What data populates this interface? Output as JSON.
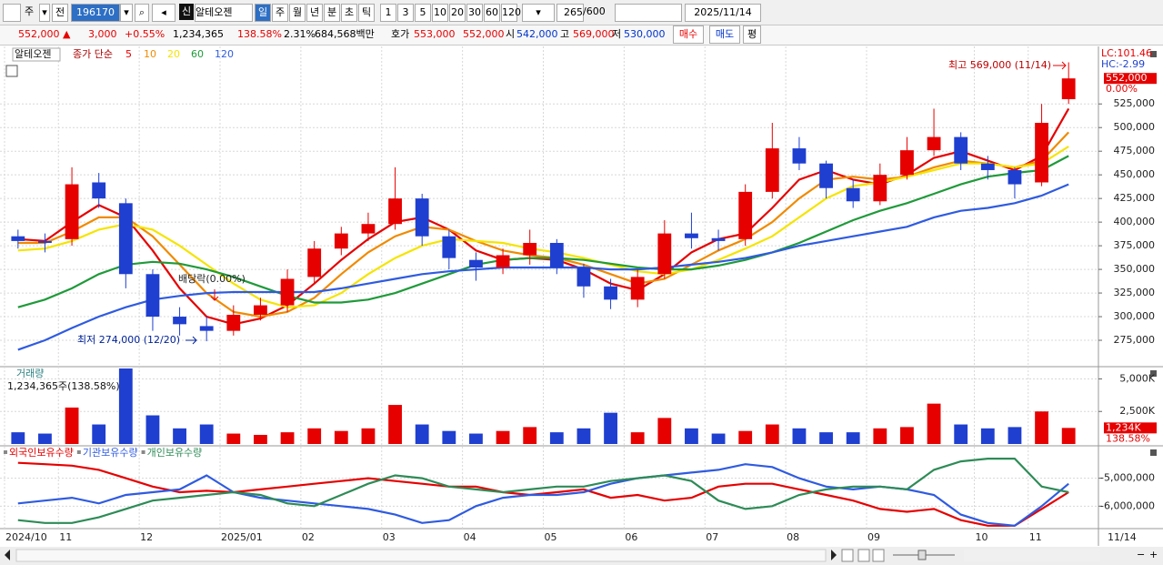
{
  "toolbar": {
    "market": "주",
    "view": "전",
    "code": "196170",
    "badge": "신",
    "name": "알테오젠",
    "periods": [
      "일",
      "주",
      "월",
      "년",
      "분",
      "초",
      "틱"
    ],
    "intervals": [
      "1",
      "3",
      "5",
      "10",
      "20",
      "30",
      "60",
      "120"
    ],
    "count": "265",
    "max": "/600",
    "date": "2025/11/14"
  },
  "quote": {
    "price": "552,000 ▲",
    "change": "3,000",
    "rate": "+0.55%",
    "volume": "1,234,365",
    "volume_ratio": "138.58%",
    "turnover": "2.31%",
    "amount": "684,568백만",
    "bid_label": "호가",
    "ask": "553,000",
    "bid": "552,000",
    "open_label": "시",
    "open": "542,000",
    "high_label": "고",
    "high": "569,000",
    "low_label": "저",
    "low": "530,000",
    "buy": "매수",
    "sell": "매도",
    "avg": "평"
  },
  "x_end_label": "11/14",
  "chart_data": [
    {
      "type": "candlestick",
      "title": "알테오젠",
      "ma_label": "종가 단순",
      "categories": [
        "2024/10",
        null,
        "11",
        null,
        null,
        "12",
        null,
        null,
        "2025/01",
        null,
        null,
        "02",
        null,
        null,
        "03",
        null,
        null,
        "04",
        null,
        null,
        "05",
        null,
        null,
        "06",
        null,
        null,
        "07",
        null,
        null,
        "08",
        null,
        null,
        "09",
        null,
        null,
        null,
        "10",
        null,
        "11",
        null
      ],
      "open": [
        385000,
        380000,
        382000,
        442000,
        420000,
        345000,
        300000,
        290000,
        285000,
        302000,
        312000,
        342000,
        372000,
        388000,
        398000,
        425000,
        385000,
        360000,
        352000,
        365000,
        378000,
        352000,
        332000,
        318000,
        345000,
        388000,
        383000,
        382000,
        432000,
        478000,
        462000,
        436000,
        422000,
        450000,
        476000,
        490000,
        462000,
        455000,
        442000,
        530000
      ],
      "high": [
        392000,
        388000,
        458000,
        452000,
        425000,
        350000,
        310000,
        300000,
        312000,
        320000,
        350000,
        380000,
        395000,
        410000,
        458000,
        430000,
        392000,
        368000,
        372000,
        392000,
        382000,
        356000,
        340000,
        350000,
        402000,
        410000,
        392000,
        440000,
        505000,
        490000,
        465000,
        445000,
        462000,
        490000,
        520000,
        495000,
        470000,
        458000,
        525000,
        569000
      ],
      "low": [
        372000,
        368000,
        375000,
        415000,
        330000,
        285000,
        280000,
        274000,
        280000,
        296000,
        305000,
        335000,
        365000,
        380000,
        392000,
        375000,
        350000,
        338000,
        345000,
        355000,
        345000,
        320000,
        308000,
        310000,
        340000,
        372000,
        370000,
        375000,
        425000,
        455000,
        425000,
        415000,
        418000,
        445000,
        470000,
        455000,
        445000,
        425000,
        438000,
        525000
      ],
      "close": [
        380000,
        378000,
        440000,
        425000,
        345000,
        300000,
        292000,
        285000,
        302000,
        312000,
        340000,
        372000,
        388000,
        398000,
        425000,
        385000,
        362000,
        352000,
        365000,
        378000,
        352000,
        332000,
        318000,
        342000,
        388000,
        383000,
        380000,
        432000,
        478000,
        462000,
        436000,
        422000,
        450000,
        476000,
        490000,
        462000,
        455000,
        440000,
        505000,
        552000
      ],
      "up_color": "#e60000",
      "down_color": "#1f3fd0",
      "series": [
        {
          "name": "5",
          "color": "#e60000",
          "values": [
            382000,
            380000,
            400000,
            418000,
            405000,
            370000,
            330000,
            300000,
            292000,
            298000,
            312000,
            335000,
            360000,
            382000,
            400000,
            405000,
            392000,
            370000,
            360000,
            362000,
            360000,
            350000,
            335000,
            328000,
            345000,
            368000,
            382000,
            388000,
            415000,
            445000,
            455000,
            445000,
            440000,
            450000,
            468000,
            475000,
            465000,
            455000,
            470000,
            520000
          ]
        },
        {
          "name": "10",
          "color": "#f08a00",
          "values": [
            378000,
            378000,
            390000,
            405000,
            405000,
            385000,
            355000,
            325000,
            305000,
            300000,
            305000,
            320000,
            345000,
            368000,
            385000,
            395000,
            392000,
            380000,
            370000,
            365000,
            362000,
            355000,
            345000,
            335000,
            340000,
            355000,
            370000,
            382000,
            400000,
            425000,
            445000,
            448000,
            445000,
            448000,
            458000,
            465000,
            462000,
            458000,
            465000,
            495000
          ]
        },
        {
          "name": "20",
          "color": "#f5e400",
          "values": [
            370000,
            372000,
            380000,
            392000,
            398000,
            392000,
            375000,
            355000,
            335000,
            318000,
            310000,
            312000,
            325000,
            345000,
            362000,
            375000,
            382000,
            380000,
            378000,
            372000,
            368000,
            362000,
            355000,
            348000,
            345000,
            350000,
            360000,
            372000,
            385000,
            405000,
            425000,
            438000,
            442000,
            448000,
            455000,
            462000,
            462000,
            458000,
            462000,
            480000
          ]
        },
        {
          "name": "60",
          "color": "#1f9a3a",
          "values": [
            310000,
            318000,
            330000,
            345000,
            355000,
            358000,
            356000,
            350000,
            342000,
            332000,
            322000,
            315000,
            315000,
            318000,
            325000,
            335000,
            345000,
            355000,
            360000,
            362000,
            362000,
            360000,
            356000,
            352000,
            350000,
            350000,
            354000,
            360000,
            368000,
            378000,
            390000,
            402000,
            412000,
            420000,
            430000,
            440000,
            448000,
            452000,
            455000,
            470000
          ]
        },
        {
          "name": "120",
          "color": "#2f5be0",
          "values": [
            265000,
            275000,
            288000,
            300000,
            310000,
            318000,
            322000,
            325000,
            326000,
            326000,
            326000,
            326000,
            330000,
            335000,
            340000,
            345000,
            348000,
            350000,
            352000,
            352000,
            352000,
            352000,
            350000,
            350000,
            352000,
            355000,
            358000,
            362000,
            368000,
            375000,
            380000,
            385000,
            390000,
            395000,
            405000,
            412000,
            415000,
            420000,
            428000,
            440000
          ]
        }
      ],
      "ylim": [
        250000,
        582000
      ],
      "yticks": [
        {
          "value": 275000,
          "label": "275,000"
        },
        {
          "value": 300000,
          "label": "300,000"
        },
        {
          "value": 325000,
          "label": "325,000"
        },
        {
          "value": 350000,
          "label": "350,000"
        },
        {
          "value": 375000,
          "label": "375,000"
        },
        {
          "value": 400000,
          "label": "400,000"
        },
        {
          "value": 425000,
          "label": "425,000"
        },
        {
          "value": 450000,
          "label": "450,000"
        },
        {
          "value": 475000,
          "label": "475,000"
        },
        {
          "value": 500000,
          "label": "500,000"
        },
        {
          "value": 525000,
          "label": "525,000"
        }
      ],
      "grid": true,
      "annotations": {
        "high": "최고 569,000 (11/14)",
        "low": "최저 274,000 (12/20)",
        "dividend": "배당락(0.00%)",
        "lc": "LC:101.46",
        "hc": "HC:-2.99",
        "last": "552,000",
        "last_rate": "0.00%"
      }
    },
    {
      "type": "bar",
      "title": "거래량",
      "subtitle": "1,234,365주(138.58%)",
      "values": [
        900000,
        800000,
        2800000,
        1500000,
        5800000,
        2200000,
        1200000,
        1500000,
        800000,
        700000,
        900000,
        1200000,
        1000000,
        1200000,
        3000000,
        1500000,
        1000000,
        800000,
        1000000,
        1300000,
        900000,
        1200000,
        2400000,
        900000,
        2000000,
        1200000,
        800000,
        1000000,
        1500000,
        1200000,
        900000,
        900000,
        1200000,
        1300000,
        3100000,
        1500000,
        1200000,
        1300000,
        2500000,
        1234365
      ],
      "last_label": "1,234K",
      "last_rate": "138.58%",
      "ylim": [
        0,
        5800000
      ],
      "yticks": [
        {
          "value": 2500000,
          "label": "2,500K"
        },
        {
          "value": 5000000,
          "label": "5,000K"
        }
      ],
      "grid": true
    },
    {
      "type": "line",
      "series": [
        {
          "name": "외국인보유수량",
          "color": "#e60000",
          "values": [
            -4450000,
            -4500000,
            -4550000,
            -4700000,
            -5000000,
            -5300000,
            -5500000,
            -5450000,
            -5500000,
            -5400000,
            -5300000,
            -5200000,
            -5100000,
            -5000000,
            -5100000,
            -5200000,
            -5300000,
            -5300000,
            -5500000,
            -5600000,
            -5500000,
            -5400000,
            -5700000,
            -5600000,
            -5800000,
            -5700000,
            -5300000,
            -5200000,
            -5200000,
            -5400000,
            -5600000,
            -5800000,
            -6100000,
            -6200000,
            -6100000,
            -6500000,
            -6700000,
            -6700000,
            -6100000,
            -5500000
          ]
        },
        {
          "name": "기관보유수량",
          "color": "#2f5be0",
          "values": [
            -5900000,
            -5800000,
            -5700000,
            -5900000,
            -5600000,
            -5500000,
            -5400000,
            -4900000,
            -5500000,
            -5700000,
            -5800000,
            -5900000,
            -6000000,
            -6100000,
            -6300000,
            -6600000,
            -6500000,
            -6000000,
            -5700000,
            -5600000,
            -5600000,
            -5500000,
            -5200000,
            -5000000,
            -4900000,
            -4800000,
            -4700000,
            -4500000,
            -4600000,
            -5000000,
            -5300000,
            -5400000,
            -5300000,
            -5400000,
            -5600000,
            -6300000,
            -6600000,
            -6700000,
            -6000000,
            -5200000
          ]
        },
        {
          "name": "개인보유수량",
          "color": "#2e8b57",
          "values": [
            -6500000,
            -6600000,
            -6600000,
            -6400000,
            -6100000,
            -5800000,
            -5700000,
            -5600000,
            -5500000,
            -5600000,
            -5900000,
            -6000000,
            -5600000,
            -5200000,
            -4900000,
            -5000000,
            -5300000,
            -5400000,
            -5500000,
            -5400000,
            -5300000,
            -5300000,
            -5100000,
            -5000000,
            -4900000,
            -5100000,
            -5800000,
            -6100000,
            -6000000,
            -5600000,
            -5400000,
            -5300000,
            -5300000,
            -5400000,
            -4700000,
            -4400000,
            -4300000,
            -4300000,
            -5300000,
            -5500000
          ]
        }
      ],
      "ylim": [
        -6770000,
        -3940000
      ],
      "yticks": [
        {
          "value": -5000000,
          "label": "-5,000,000"
        },
        {
          "value": -6000000,
          "label": "-6,000,000"
        }
      ],
      "grid": true
    }
  ]
}
